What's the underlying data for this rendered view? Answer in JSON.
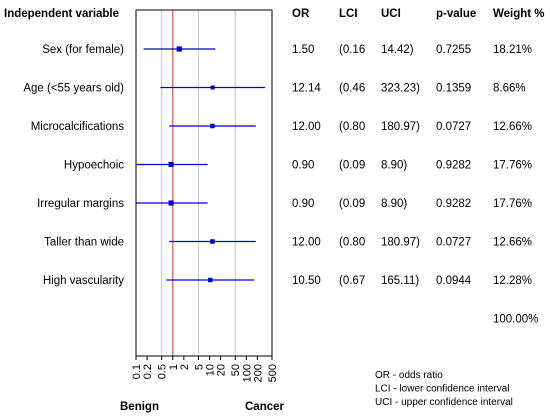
{
  "chart_data": {
    "type": "forest",
    "headers": {
      "variable": "Independent variable",
      "or": "OR",
      "lci": "LCI",
      "uci": "UCI",
      "pvalue": "p-value",
      "weight": "Weight %"
    },
    "rows": [
      {
        "label": "Sex (for female)",
        "or": 1.5,
        "lci": 0.16,
        "uci": 14.42,
        "or_text": "1.50",
        "lci_text": "(0.16",
        "uci_text": "14.42)",
        "p_text": "0.7255",
        "w_text": "18.21%",
        "weight": 18.21
      },
      {
        "label": "Age (<55 years old)",
        "or": 12.14,
        "lci": 0.46,
        "uci": 323.23,
        "or_text": "12.14",
        "lci_text": "(0.46",
        "uci_text": "323.23)",
        "p_text": "0.1359",
        "w_text": "8.66%",
        "weight": 8.66
      },
      {
        "label": "Microcalcifications",
        "or": 12.0,
        "lci": 0.8,
        "uci": 180.97,
        "or_text": "12.00",
        "lci_text": "(0.80",
        "uci_text": "180.97)",
        "p_text": "0.0727",
        "w_text": "12.66%",
        "weight": 12.66
      },
      {
        "label": "Hypoechoic",
        "or": 0.9,
        "lci": 0.09,
        "uci": 8.9,
        "or_text": "0.90",
        "lci_text": "(0.09",
        "uci_text": "8.90)",
        "p_text": "0.9282",
        "w_text": "17.76%",
        "weight": 17.76
      },
      {
        "label": "Irregular margins",
        "or": 0.9,
        "lci": 0.09,
        "uci": 8.9,
        "or_text": "0.90",
        "lci_text": "(0.09",
        "uci_text": "8.90)",
        "p_text": "0.9282",
        "w_text": "17.76%",
        "weight": 17.76
      },
      {
        "label": "Taller than wide",
        "or": 12.0,
        "lci": 0.8,
        "uci": 180.97,
        "or_text": "12.00",
        "lci_text": "(0.80",
        "uci_text": "180.97)",
        "p_text": "0.0727",
        "w_text": "12.66%",
        "weight": 12.66
      },
      {
        "label": "High vascularity",
        "or": 10.5,
        "lci": 0.67,
        "uci": 165.11,
        "or_text": "10.50",
        "lci_text": "(0.67",
        "uci_text": "165.11)",
        "p_text": "0.0944",
        "w_text": "12.28%",
        "weight": 12.28
      }
    ],
    "total_weight": "100.00%",
    "x_axis": {
      "scale": "log",
      "range": [
        0.1,
        500
      ],
      "tick_labels": [
        "0.1",
        "0.2",
        "0.5",
        "1",
        "2",
        "5",
        "10",
        "20",
        "50",
        "100",
        "200",
        "500"
      ],
      "tick_values": [
        0.1,
        0.2,
        0.5,
        1,
        2,
        5,
        10,
        20,
        50,
        100,
        200,
        500
      ],
      "grid_values": [
        0.5,
        5,
        50
      ]
    },
    "reference_line": 1,
    "left_label": "Benign",
    "right_label": "Cancer",
    "notes": [
      "OR - odds ratio",
      "LCI - lower confidence interval",
      "UCI - upper confidence interval"
    ],
    "colors": {
      "ci_line": "#0000cc",
      "marker": "#0000cc",
      "reference_line": "#e05050",
      "grid": "#c8c8c8",
      "frame": "#000000"
    }
  }
}
